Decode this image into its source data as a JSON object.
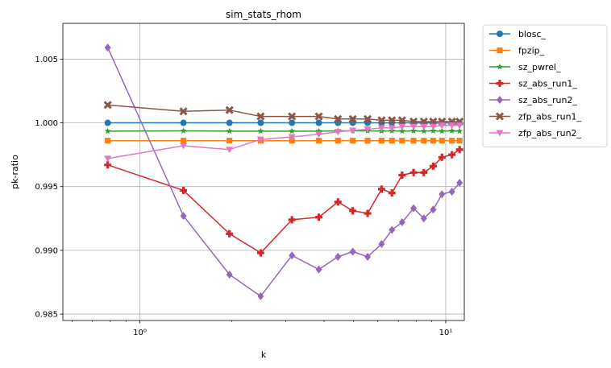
{
  "chart_data": {
    "type": "line",
    "title": "sim_stats_rhom",
    "xlabel": "k",
    "ylabel": "pk-ratio",
    "xscale": "log",
    "xlim": [
      0.56,
      11.5
    ],
    "ylim": [
      0.9845,
      1.0078
    ],
    "xticks": [
      {
        "value": 1,
        "label": "10⁰"
      },
      {
        "value": 10,
        "label": "10¹"
      }
    ],
    "yticks": [
      {
        "value": 0.985,
        "label": "0.985"
      },
      {
        "value": 0.99,
        "label": "0.990"
      },
      {
        "value": 0.995,
        "label": "0.995"
      },
      {
        "value": 1.0,
        "label": "1.000"
      },
      {
        "value": 1.005,
        "label": "1.005"
      }
    ],
    "grid": true,
    "legend_position": "outside-right-top",
    "x": [
      0.785,
      1.388,
      1.963,
      2.483,
      3.142,
      3.847,
      4.443,
      4.967,
      5.554,
      6.17,
      6.67,
      7.2,
      7.85,
      8.48,
      9.1,
      9.72,
      10.48,
      11.1
    ],
    "series": [
      {
        "name": "blosc_",
        "color": "#1f77b4",
        "marker": "circle",
        "values": [
          1.0,
          1.0,
          1.0,
          1.0,
          1.0,
          1.0,
          1.0,
          1.0,
          1.0,
          1.0,
          1.0,
          1.0,
          1.0,
          1.0,
          1.0,
          1.0,
          1.0,
          1.0
        ]
      },
      {
        "name": "fpzip_",
        "color": "#ff7f0e",
        "marker": "square",
        "values": [
          0.9986,
          0.9986,
          0.9986,
          0.9986,
          0.9986,
          0.9986,
          0.9986,
          0.9986,
          0.9986,
          0.9986,
          0.9986,
          0.9986,
          0.9986,
          0.9986,
          0.9986,
          0.9986,
          0.9986,
          0.9986
        ]
      },
      {
        "name": "sz_pwrel_",
        "color": "#2ca02c",
        "marker": "star",
        "values": [
          0.99935,
          0.99937,
          0.99935,
          0.99935,
          0.99935,
          0.99935,
          0.99937,
          0.99937,
          0.99937,
          0.99935,
          0.99937,
          0.99935,
          0.99937,
          0.99935,
          0.99937,
          0.99935,
          0.99937,
          0.99935
        ]
      },
      {
        "name": "sz_abs_run1_",
        "color": "#d62728",
        "marker": "plus",
        "values": [
          0.9967,
          0.9947,
          0.9913,
          0.9898,
          0.9924,
          0.9926,
          0.9938,
          0.9931,
          0.9929,
          0.9948,
          0.9945,
          0.9959,
          0.9961,
          0.9961,
          0.9966,
          0.9973,
          0.9975,
          0.9979
        ]
      },
      {
        "name": "sz_abs_run2_",
        "color": "#9467bd",
        "marker": "diamond",
        "values": [
          1.0059,
          0.9927,
          0.9881,
          0.9864,
          0.9896,
          0.9885,
          0.9895,
          0.9899,
          0.9895,
          0.9905,
          0.9916,
          0.9922,
          0.9933,
          0.9925,
          0.9932,
          0.9944,
          0.9946,
          0.9953
        ]
      },
      {
        "name": "zfp_abs_run1_",
        "color": "#8c564b",
        "marker": "x",
        "values": [
          1.0014,
          1.0009,
          1.001,
          1.0005,
          1.0005,
          1.0005,
          1.0003,
          1.0003,
          1.0003,
          1.0002,
          1.0002,
          1.0002,
          1.0001,
          1.0001,
          1.0001,
          1.0001,
          1.0001,
          1.0001
        ]
      },
      {
        "name": "zfp_abs_run2_",
        "color": "#e377c2",
        "marker": "triangle-down",
        "values": [
          0.9972,
          0.9982,
          0.9979,
          0.9987,
          0.9989,
          0.9991,
          0.9993,
          0.9994,
          0.9995,
          0.9996,
          0.9996,
          0.9997,
          0.9997,
          0.9997,
          0.9997,
          0.9998,
          0.9998,
          0.9998
        ]
      }
    ]
  }
}
